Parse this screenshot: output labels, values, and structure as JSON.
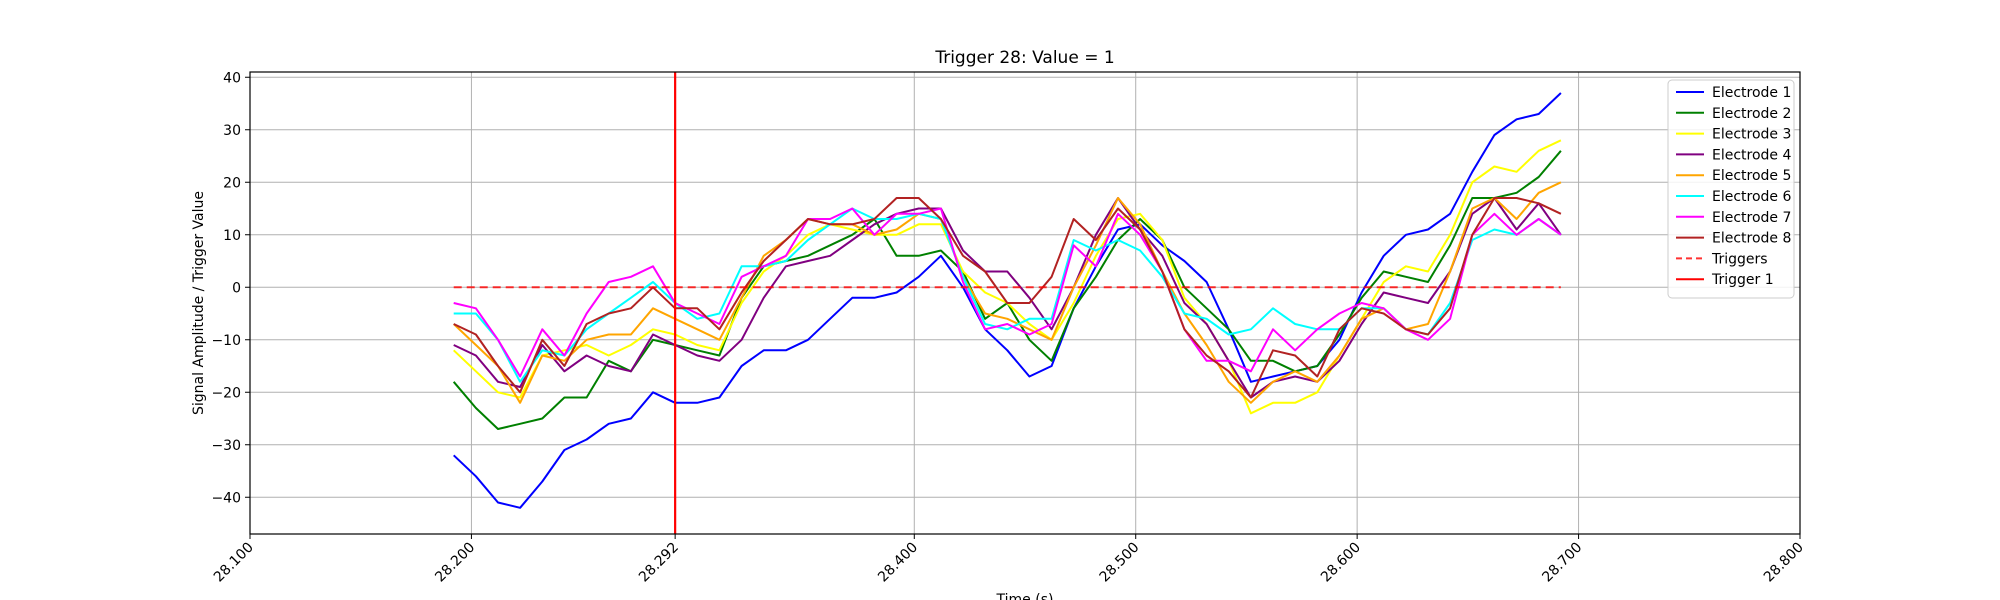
{
  "chart_data": {
    "type": "line",
    "title": "Trigger 28: Value = 1",
    "xlabel": "Time (s)",
    "ylabel": "Signal Amplitude / Trigger Value",
    "xlim": [
      28.1,
      28.8
    ],
    "ylim": [
      -47,
      41
    ],
    "xticks": [
      28.1,
      28.2,
      28.292,
      28.4,
      28.5,
      28.6,
      28.7,
      28.8
    ],
    "xtick_labels": [
      "28.100",
      "28.200",
      "28.292",
      "28.400",
      "28.500",
      "28.600",
      "28.700",
      "28.800"
    ],
    "yticks": [
      -40,
      -30,
      -20,
      -10,
      0,
      10,
      20,
      30,
      40
    ],
    "ytick_labels": [
      "−40",
      "−30",
      "−20",
      "−10",
      "0",
      "10",
      "20",
      "30",
      "40"
    ],
    "grid": true,
    "legend_position": "top-right",
    "x": [
      28.192,
      28.202,
      28.212,
      28.222,
      28.232,
      28.242,
      28.252,
      28.262,
      28.272,
      28.282,
      28.292,
      28.302,
      28.312,
      28.322,
      28.332,
      28.342,
      28.352,
      28.362,
      28.372,
      28.382,
      28.392,
      28.402,
      28.412,
      28.422,
      28.432,
      28.442,
      28.452,
      28.462,
      28.472,
      28.482,
      28.492,
      28.502,
      28.512,
      28.522,
      28.532,
      28.542,
      28.552,
      28.562,
      28.572,
      28.582,
      28.592,
      28.602,
      28.612,
      28.622,
      28.632,
      28.642,
      28.652,
      28.662,
      28.672,
      28.682,
      28.692
    ],
    "series": [
      {
        "name": "Electrode 1",
        "color": "#0000ff",
        "values": [
          -32,
          -36,
          -41,
          -42,
          -37,
          -31,
          -29,
          -26,
          -25,
          -20,
          -22,
          -22,
          -21,
          -15,
          -12,
          -12,
          -10,
          -6,
          -2,
          -2,
          -1,
          2,
          6,
          0,
          -8,
          -12,
          -17,
          -15,
          -4,
          4,
          11,
          12,
          8,
          5,
          1,
          -8,
          -18,
          -17,
          -16,
          -15,
          -10,
          -1,
          6,
          10,
          11,
          14,
          22,
          29,
          32,
          33,
          37
        ],
        "style": "solid"
      },
      {
        "name": "Electrode 2",
        "color": "#008000",
        "values": [
          -18,
          -23,
          -27,
          -26,
          -25,
          -21,
          -21,
          -14,
          -16,
          -10,
          -11,
          -12,
          -13,
          -2,
          4,
          5,
          6,
          8,
          10,
          13,
          6,
          6,
          7,
          3,
          -6,
          -3,
          -10,
          -14,
          -4,
          2,
          9,
          13,
          9,
          0,
          -4,
          -8,
          -14,
          -14,
          -16,
          -15,
          -9,
          -2,
          3,
          2,
          1,
          8,
          17,
          17,
          18,
          21,
          26
        ],
        "style": "solid"
      },
      {
        "name": "Electrode 3",
        "color": "#ffff00",
        "values": [
          -12,
          -16,
          -20,
          -21,
          -13,
          -12,
          -11,
          -13,
          -11,
          -8,
          -9,
          -11,
          -12,
          -3,
          3,
          6,
          10,
          12,
          11,
          10,
          10,
          12,
          12,
          3,
          -1,
          -3,
          -7,
          -10,
          -3,
          6,
          13,
          14,
          9,
          -2,
          -7,
          -14,
          -24,
          -22,
          -22,
          -20,
          -13,
          -6,
          1,
          4,
          3,
          10,
          20,
          23,
          22,
          26,
          28
        ],
        "style": "solid"
      },
      {
        "name": "Electrode 4",
        "color": "#800080",
        "values": [
          -11,
          -13,
          -18,
          -19,
          -11,
          -16,
          -13,
          -15,
          -16,
          -9,
          -11,
          -13,
          -14,
          -10,
          -2,
          4,
          5,
          6,
          9,
          12,
          14,
          15,
          15,
          7,
          3,
          3,
          -2,
          -8,
          0,
          10,
          17,
          11,
          6,
          -3,
          -7,
          -14,
          -21,
          -18,
          -17,
          -18,
          -14,
          -7,
          -1,
          -2,
          -3,
          3,
          14,
          17,
          11,
          16,
          10
        ],
        "style": "solid"
      },
      {
        "name": "Electrode 5",
        "color": "#ffa500",
        "values": [
          -7,
          -11,
          -15,
          -22,
          -13,
          -14,
          -10,
          -9,
          -9,
          -4,
          -6,
          -8,
          -10,
          -2,
          6,
          9,
          13,
          12,
          12,
          10,
          11,
          14,
          13,
          2,
          -5,
          -6,
          -8,
          -10,
          0,
          8,
          17,
          12,
          3,
          -5,
          -11,
          -18,
          -22,
          -18,
          -16,
          -18,
          -13,
          -6,
          -4,
          -8,
          -7,
          3,
          15,
          17,
          13,
          18,
          20
        ],
        "style": "solid"
      },
      {
        "name": "Electrode 6",
        "color": "#00ffff",
        "values": [
          -5,
          -5,
          -10,
          -18,
          -12,
          -13,
          -8,
          -5,
          -2,
          1,
          -3,
          -6,
          -5,
          4,
          4,
          5,
          9,
          12,
          15,
          13,
          13,
          14,
          13,
          2,
          -7,
          -8,
          -6,
          -6,
          9,
          7,
          9,
          7,
          2,
          -5,
          -6,
          -9,
          -8,
          -4,
          -7,
          -8,
          -8,
          -4,
          -4,
          -8,
          -9,
          -3,
          9,
          11,
          10,
          13,
          10
        ],
        "style": "solid"
      },
      {
        "name": "Electrode 7",
        "color": "#ff00ff",
        "values": [
          -3,
          -4,
          -10,
          -17,
          -8,
          -13,
          -5,
          1,
          2,
          4,
          -3,
          -5,
          -7,
          2,
          4,
          6,
          13,
          13,
          15,
          10,
          14,
          14,
          15,
          1,
          -8,
          -7,
          -9,
          -7,
          8,
          4,
          14,
          10,
          3,
          -8,
          -14,
          -14,
          -16,
          -8,
          -12,
          -8,
          -5,
          -3,
          -4,
          -8,
          -10,
          -6,
          10,
          14,
          10,
          13,
          10
        ],
        "style": "solid"
      },
      {
        "name": "Electrode 8",
        "color": "#b22222",
        "values": [
          -7,
          -9,
          -15,
          -20,
          -10,
          -15,
          -7,
          -5,
          -4,
          0,
          -4,
          -4,
          -8,
          -1,
          5,
          9,
          13,
          12,
          12,
          13,
          17,
          17,
          13,
          6,
          3,
          -3,
          -3,
          2,
          13,
          9,
          15,
          11,
          3,
          -8,
          -13,
          -16,
          -21,
          -12,
          -13,
          -17,
          -8,
          -4,
          -5,
          -8,
          -9,
          -4,
          10,
          17,
          17,
          16,
          14
        ],
        "style": "solid"
      },
      {
        "name": "Triggers",
        "color": "#ff0000",
        "x_range": [
          28.192,
          28.692
        ],
        "constant": 0,
        "style": "dashed"
      }
    ],
    "markers": [
      {
        "name": "Trigger 1",
        "color": "#ff0000",
        "x": 28.292,
        "style": "vertical-line"
      }
    ]
  }
}
